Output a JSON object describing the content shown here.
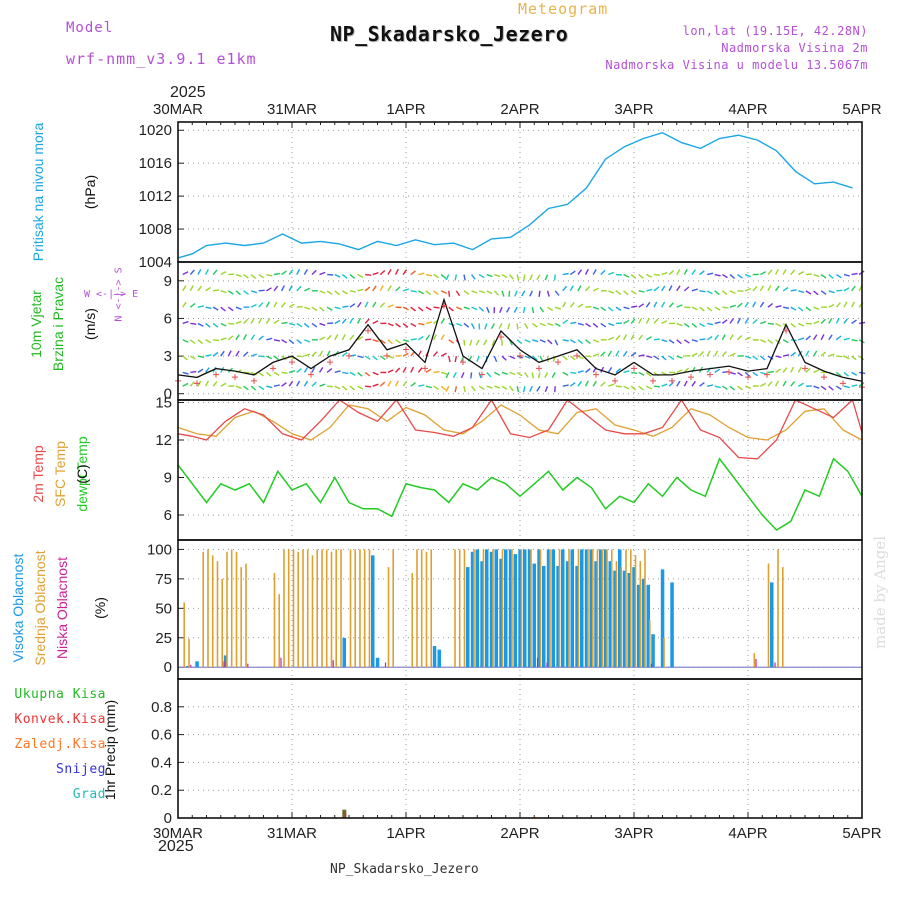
{
  "header": {
    "model_label": "Model",
    "model_name": "wrf-nmm_v3.9.1 e1km",
    "meteogram_label": "Meteogram",
    "station_title": "NP_Skadarsko_Jezero",
    "lonlat": "lon,lat (19.15E, 42.28N)",
    "elevation": "Nadmorska Visina 2m",
    "model_elevation": "Nadmorska Visina u modelu 13.5067m"
  },
  "footer": {
    "station": "NP_Skadarsko_Jezero"
  },
  "watermark": "made by Angel",
  "axis": {
    "year": "2025",
    "dates": [
      "30MAR",
      "31MAR",
      "1APR",
      "2APR",
      "3APR",
      "4APR",
      "5APR"
    ]
  },
  "panels": {
    "pressure": {
      "label": "Pritisak na nivou mora",
      "unit": "(hPa)",
      "ticks": [
        "1020",
        "1016",
        "1012",
        "1008",
        "1004"
      ]
    },
    "wind": {
      "label_line1": "10m Vjetar",
      "label_line2": "Brzina i Pravac",
      "unit": "(m/s)",
      "ticks": [
        "9",
        "6",
        "3",
        "0"
      ],
      "compass": "W <-|-> E",
      "compass_ns": "N <-|-> S"
    },
    "temperature": {
      "label_line1": "2m Temp",
      "label_line2": "SFC Temp",
      "label_line3": "dewpt Temp",
      "unit": "(C)",
      "ticks": [
        "15",
        "12",
        "9",
        "6"
      ]
    },
    "cloud": {
      "label_line1": "Visoka Oblacnost",
      "label_line2": "Srednja Oblacnost",
      "label_line3": "Niska Oblacnost",
      "unit": "(%)",
      "ticks": [
        "100",
        "75",
        "50",
        "25",
        "0"
      ]
    },
    "precip": {
      "legend": [
        "Ukupna Kisa",
        "Konvek.Kisa",
        "Zaledj.Kisa",
        "Snijeg",
        "Grad"
      ],
      "unit": "1hr Precip (mm)",
      "ticks": [
        "0.8",
        "0.6",
        "0.4",
        "0.2",
        "0"
      ]
    }
  },
  "colors": {
    "pressure": "#1aa6e6",
    "temp2m": "#e84a4a",
    "sfc": "#e0a030",
    "dewpt": "#22cc22",
    "high_cloud": "#1a9ae6",
    "mid_cloud": "#e0a030",
    "low_cloud": "#cc2299",
    "ukupna": "#22bb22",
    "konvek": "#ee3333",
    "zaledj": "#ff7722",
    "snijeg": "#3333dd",
    "grad": "#22bbbb",
    "model": "#b450d6"
  },
  "chart_data": {
    "type": "line",
    "x_start": "2025-03-30 00Z",
    "x_end": "2025-04-05 00Z",
    "x_unit": "hours since 30MAR 00Z",
    "pressure": {
      "ylim": [
        1004,
        1021
      ],
      "x": [
        0,
        3,
        6,
        10,
        14,
        18,
        22,
        26,
        30,
        34,
        38,
        42,
        46,
        50,
        54,
        58,
        62,
        66,
        70,
        74,
        78,
        82,
        86,
        90,
        94,
        98,
        102,
        106,
        110,
        114,
        118,
        122,
        126,
        130,
        134,
        138,
        142
      ],
      "values": [
        1004.5,
        1005.0,
        1006.0,
        1006.3,
        1006.0,
        1006.3,
        1007.4,
        1006.3,
        1006.5,
        1006.2,
        1005.5,
        1006.5,
        1006.0,
        1006.7,
        1006.1,
        1006.3,
        1005.5,
        1006.8,
        1007.0,
        1008.5,
        1010.5,
        1011.0,
        1013.0,
        1016.5,
        1018.0,
        1019.0,
        1019.7,
        1018.5,
        1017.8,
        1019.0,
        1019.4,
        1018.8,
        1017.5,
        1015.0,
        1013.5,
        1013.7,
        1013.0
      ]
    },
    "wind_speed": {
      "ylim": [
        -0.5,
        10.5
      ],
      "x": [
        0,
        4,
        8,
        12,
        16,
        20,
        24,
        28,
        32,
        36,
        40,
        44,
        48,
        52,
        56,
        60,
        64,
        68,
        72,
        76,
        80,
        84,
        88,
        92,
        96,
        100,
        104,
        108,
        112,
        116,
        120,
        124,
        128,
        132,
        136,
        140,
        144
      ],
      "values": [
        1.5,
        1.3,
        2.0,
        1.8,
        1.5,
        2.5,
        3.0,
        2.0,
        3.0,
        3.5,
        5.5,
        3.5,
        4.0,
        2.5,
        7.5,
        3.0,
        2.0,
        5.0,
        3.5,
        2.5,
        3.0,
        3.5,
        2.0,
        1.5,
        2.5,
        1.5,
        1.5,
        1.8,
        2.0,
        2.2,
        1.8,
        2.0,
        5.5,
        2.5,
        1.8,
        1.3,
        1.0
      ]
    },
    "temperature": {
      "ylim": [
        4,
        15.2
      ],
      "temp2m": {
        "x": [
          0,
          3,
          6,
          10,
          14,
          18,
          22,
          26,
          30,
          34,
          38,
          42,
          46,
          50,
          54,
          58,
          62,
          66,
          70,
          74,
          78,
          82,
          86,
          90,
          94,
          98,
          102,
          106,
          110,
          114,
          118,
          122,
          126,
          130,
          134,
          138,
          142,
          144
        ],
        "values": [
          12.5,
          12.3,
          12.0,
          13.5,
          14.5,
          14.0,
          12.5,
          12.0,
          13.5,
          15.2,
          14.2,
          13.5,
          15.2,
          12.8,
          12.6,
          12.3,
          13.0,
          15.2,
          12.5,
          12.2,
          12.8,
          15.2,
          14.0,
          12.8,
          12.5,
          12.5,
          13.0,
          15.2,
          12.8,
          12.2,
          10.6,
          10.5,
          12.0,
          15.2,
          14.5,
          13.8,
          15.2,
          12.6
        ]
      },
      "sfc": {
        "x": [
          0,
          4,
          8,
          12,
          16,
          20,
          24,
          28,
          32,
          36,
          40,
          44,
          48,
          52,
          56,
          60,
          64,
          68,
          72,
          76,
          80,
          84,
          88,
          92,
          96,
          100,
          104,
          108,
          112,
          116,
          120,
          124,
          128,
          132,
          136,
          140,
          144
        ],
        "values": [
          13.0,
          12.5,
          12.3,
          13.8,
          14.3,
          13.5,
          12.5,
          12.0,
          13.0,
          14.8,
          14.5,
          13.5,
          14.6,
          14.0,
          12.8,
          12.5,
          13.5,
          14.8,
          14.0,
          12.8,
          12.5,
          14.2,
          14.5,
          13.2,
          12.8,
          12.3,
          13.0,
          14.5,
          14.0,
          13.0,
          12.2,
          12.0,
          12.8,
          14.3,
          14.5,
          12.8,
          12.0
        ]
      },
      "dewpt": {
        "x": [
          0,
          3,
          6,
          9,
          12,
          15,
          18,
          21,
          24,
          27,
          30,
          33,
          36,
          39,
          42,
          45,
          48,
          51,
          54,
          57,
          60,
          63,
          66,
          69,
          72,
          75,
          78,
          81,
          84,
          87,
          90,
          93,
          96,
          99,
          102,
          105,
          108,
          111,
          114,
          117,
          120,
          123,
          126,
          129,
          132,
          135,
          138,
          141,
          144
        ],
        "values": [
          10.0,
          8.5,
          7.0,
          8.5,
          8.0,
          8.5,
          7.0,
          9.5,
          8.0,
          8.5,
          7.0,
          9.0,
          7.0,
          6.5,
          6.5,
          5.9,
          8.5,
          8.2,
          8.0,
          7.0,
          8.5,
          8.0,
          9.0,
          8.5,
          7.5,
          8.5,
          9.5,
          8.0,
          9.0,
          8.2,
          6.5,
          7.5,
          7.0,
          8.5,
          7.5,
          9.0,
          8.0,
          7.5,
          10.5,
          9.0,
          7.5,
          6.0,
          4.8,
          5.5,
          8.0,
          7.5,
          10.5,
          9.5,
          7.5
        ]
      }
    },
    "cloud": {
      "ylim": [
        0,
        100
      ],
      "high_cloud": [
        [
          2,
          1
        ],
        [
          4,
          5
        ],
        [
          10,
          10
        ],
        [
          35,
          25
        ],
        [
          41,
          95
        ],
        [
          42,
          8
        ],
        [
          54,
          18
        ],
        [
          55,
          15
        ],
        [
          61,
          85
        ],
        [
          62,
          98
        ],
        [
          63,
          100
        ],
        [
          64,
          90
        ],
        [
          65,
          100
        ],
        [
          66,
          98
        ],
        [
          67,
          100
        ],
        [
          68,
          92
        ],
        [
          69,
          100
        ],
        [
          70,
          100
        ],
        [
          71,
          96
        ],
        [
          72,
          100
        ],
        [
          73,
          100
        ],
        [
          74,
          100
        ],
        [
          75,
          88
        ],
        [
          76,
          100
        ],
        [
          77,
          86
        ],
        [
          78,
          100
        ],
        [
          79,
          100
        ],
        [
          80,
          86
        ],
        [
          81,
          100
        ],
        [
          82,
          90
        ],
        [
          83,
          100
        ],
        [
          84,
          86
        ],
        [
          85,
          100
        ],
        [
          86,
          100
        ],
        [
          87,
          100
        ],
        [
          88,
          90
        ],
        [
          89,
          100
        ],
        [
          90,
          100
        ],
        [
          91,
          90
        ],
        [
          92,
          82
        ],
        [
          93,
          100
        ],
        [
          94,
          82
        ],
        [
          95,
          80
        ],
        [
          96,
          85
        ],
        [
          97,
          70
        ],
        [
          98,
          75
        ],
        [
          99,
          70
        ],
        [
          100,
          28
        ],
        [
          102,
          83
        ],
        [
          104,
          72
        ],
        [
          125,
          72
        ]
      ],
      "mid_cloud": [
        [
          1,
          55
        ],
        [
          2,
          24
        ],
        [
          5,
          98
        ],
        [
          6,
          100
        ],
        [
          7,
          95
        ],
        [
          8,
          90
        ],
        [
          9,
          75
        ],
        [
          10,
          98
        ],
        [
          11,
          100
        ],
        [
          12,
          98
        ],
        [
          13,
          85
        ],
        [
          14,
          88
        ],
        [
          20,
          80
        ],
        [
          21,
          62
        ],
        [
          22,
          100
        ],
        [
          23,
          100
        ],
        [
          24,
          100
        ],
        [
          25,
          98
        ],
        [
          26,
          100
        ],
        [
          27,
          100
        ],
        [
          28,
          95
        ],
        [
          29,
          100
        ],
        [
          30,
          100
        ],
        [
          31,
          100
        ],
        [
          32,
          98
        ],
        [
          33,
          100
        ],
        [
          34,
          100
        ],
        [
          36,
          100
        ],
        [
          37,
          100
        ],
        [
          38,
          100
        ],
        [
          39,
          100
        ],
        [
          40,
          100
        ],
        [
          44,
          85
        ],
        [
          45,
          100
        ],
        [
          49,
          80
        ],
        [
          50,
          100
        ],
        [
          51,
          100
        ],
        [
          52,
          98
        ],
        [
          53,
          100
        ],
        [
          58,
          100
        ],
        [
          59,
          100
        ],
        [
          60,
          100
        ],
        [
          62,
          100
        ],
        [
          64,
          100
        ],
        [
          66,
          100
        ],
        [
          68,
          100
        ],
        [
          70,
          100
        ],
        [
          72,
          100
        ],
        [
          74,
          100
        ],
        [
          76,
          100
        ],
        [
          78,
          100
        ],
        [
          80,
          100
        ],
        [
          82,
          100
        ],
        [
          84,
          100
        ],
        [
          86,
          100
        ],
        [
          87,
          100
        ],
        [
          88,
          100
        ],
        [
          89,
          100
        ],
        [
          90,
          100
        ],
        [
          91,
          100
        ],
        [
          92,
          90
        ],
        [
          93,
          85
        ],
        [
          94,
          100
        ],
        [
          95,
          100
        ],
        [
          96,
          95
        ],
        [
          97,
          90
        ],
        [
          98,
          100
        ],
        [
          99,
          40
        ],
        [
          102,
          25
        ],
        [
          121,
          12
        ],
        [
          124,
          88
        ],
        [
          126,
          100
        ],
        [
          127,
          85
        ]
      ],
      "low_cloud": [
        [
          3,
          2
        ],
        [
          10,
          5
        ],
        [
          15,
          3
        ],
        [
          22,
          8
        ],
        [
          33,
          6
        ],
        [
          44,
          4
        ],
        [
          76,
          8
        ],
        [
          78,
          4
        ],
        [
          100,
          3
        ],
        [
          122,
          7
        ],
        [
          126,
          4
        ]
      ]
    },
    "precip": {
      "ylim": [
        0,
        1.0
      ],
      "ukupna": [
        [
          35,
          0.06
        ]
      ],
      "konvek": [
        [
          35,
          0.04
        ]
      ],
      "zaledj": [
        [
          75,
          0.01
        ]
      ],
      "snijeg": [],
      "grad": []
    }
  }
}
